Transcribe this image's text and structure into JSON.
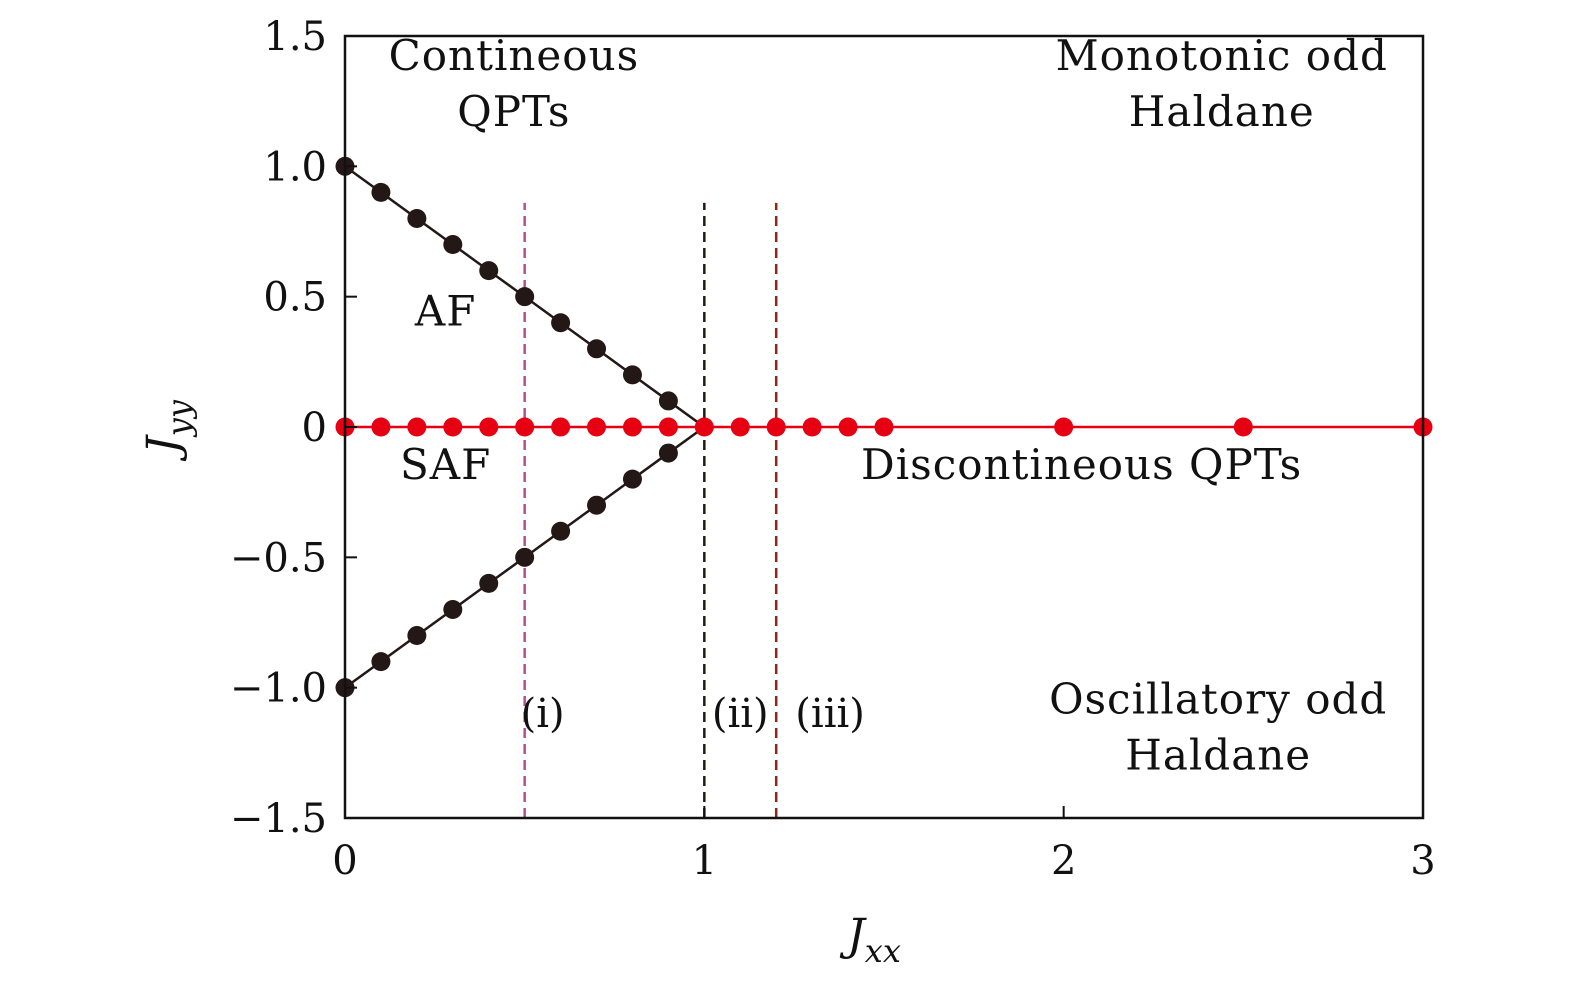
{
  "chart_data": {
    "type": "scatter",
    "xlabel": {
      "main": "J",
      "sub": "xx"
    },
    "ylabel": {
      "main": "J",
      "sub": "yy"
    },
    "xlim": [
      0,
      3
    ],
    "ylim": [
      -1.5,
      1.5
    ],
    "x_ticks": [
      0,
      1,
      2,
      3
    ],
    "x_tick_labels": [
      "0",
      "1",
      "2",
      "3"
    ],
    "y_ticks": [
      1.5,
      1.0,
      0.5,
      0,
      -0.5,
      -1.0,
      -1.5
    ],
    "y_tick_labels": [
      "1.5",
      "1.0",
      "0.5",
      "0",
      "−0.5",
      "−1.0",
      "−1.5"
    ],
    "grid": false,
    "series": [
      {
        "color": "#231815",
        "line": true,
        "x": [
          0,
          0.1,
          0.2,
          0.3,
          0.4,
          0.5,
          0.6,
          0.7,
          0.8,
          0.9,
          1.0
        ],
        "y": [
          1.0,
          0.9,
          0.8,
          0.7,
          0.6,
          0.5,
          0.4,
          0.3,
          0.2,
          0.1,
          0
        ],
        "markers_x": [
          0,
          0.1,
          0.2,
          0.3,
          0.4,
          0.5,
          0.6,
          0.7,
          0.8,
          0.9
        ],
        "markers_y": [
          1.0,
          0.9,
          0.8,
          0.7,
          0.6,
          0.5,
          0.4,
          0.3,
          0.2,
          0.1
        ]
      },
      {
        "color": "#231815",
        "line": true,
        "x": [
          0,
          0.1,
          0.2,
          0.3,
          0.4,
          0.5,
          0.6,
          0.7,
          0.8,
          0.9,
          1.0
        ],
        "y": [
          -1.0,
          -0.9,
          -0.8,
          -0.7,
          -0.6,
          -0.5,
          -0.4,
          -0.3,
          -0.2,
          -0.1,
          0
        ],
        "markers_x": [
          0,
          0.1,
          0.2,
          0.3,
          0.4,
          0.5,
          0.6,
          0.7,
          0.8,
          0.9
        ],
        "markers_y": [
          -1.0,
          -0.9,
          -0.8,
          -0.7,
          -0.6,
          -0.5,
          -0.4,
          -0.3,
          -0.2,
          -0.1
        ]
      },
      {
        "color": "#e60012",
        "line": true,
        "x": [
          0,
          3
        ],
        "y": [
          0,
          0
        ],
        "markers_x": [
          0,
          0.1,
          0.2,
          0.3,
          0.4,
          0.5,
          0.6,
          0.7,
          0.8,
          0.9,
          1.0,
          1.1,
          1.2,
          1.3,
          1.4,
          1.5,
          2.0,
          2.5,
          3.0
        ],
        "markers_y": [
          0,
          0,
          0,
          0,
          0,
          0,
          0,
          0,
          0,
          0,
          0,
          0,
          0,
          0,
          0,
          0,
          0,
          0,
          0
        ]
      }
    ],
    "vlines": [
      {
        "x": 0.5,
        "y_from": -1.5,
        "y_to": 0.86,
        "color": "#b5508f",
        "label": "(i)",
        "label_x": 0.55,
        "label_y": -1.15
      },
      {
        "x": 1.0,
        "y_from": -1.5,
        "y_to": 0.86,
        "color": "#231815",
        "label": "(ii)",
        "label_x": 1.1,
        "label_y": -1.15
      },
      {
        "x": 1.2,
        "y_from": -1.5,
        "y_to": 0.86,
        "color": "#8b2a12",
        "label": "(iii)",
        "label_x": 1.35,
        "label_y": -1.15
      }
    ],
    "annotations": [
      {
        "lines": [
          "Contineous",
          "QPTs"
        ],
        "x": 0.47,
        "y": 1.37
      },
      {
        "lines": [
          "Monotonic odd",
          "Haldane"
        ],
        "x": 2.44,
        "y": 1.37
      },
      {
        "lines": [
          "AF"
        ],
        "x": 0.28,
        "y": 0.39
      },
      {
        "lines": [
          "SAF"
        ],
        "x": 0.28,
        "y": -0.2
      },
      {
        "lines": [
          "Discontineous QPTs"
        ],
        "x": 2.05,
        "y": -0.2
      },
      {
        "lines": [
          "Oscillatory odd",
          "Haldane"
        ],
        "x": 2.43,
        "y": -1.1
      }
    ]
  }
}
